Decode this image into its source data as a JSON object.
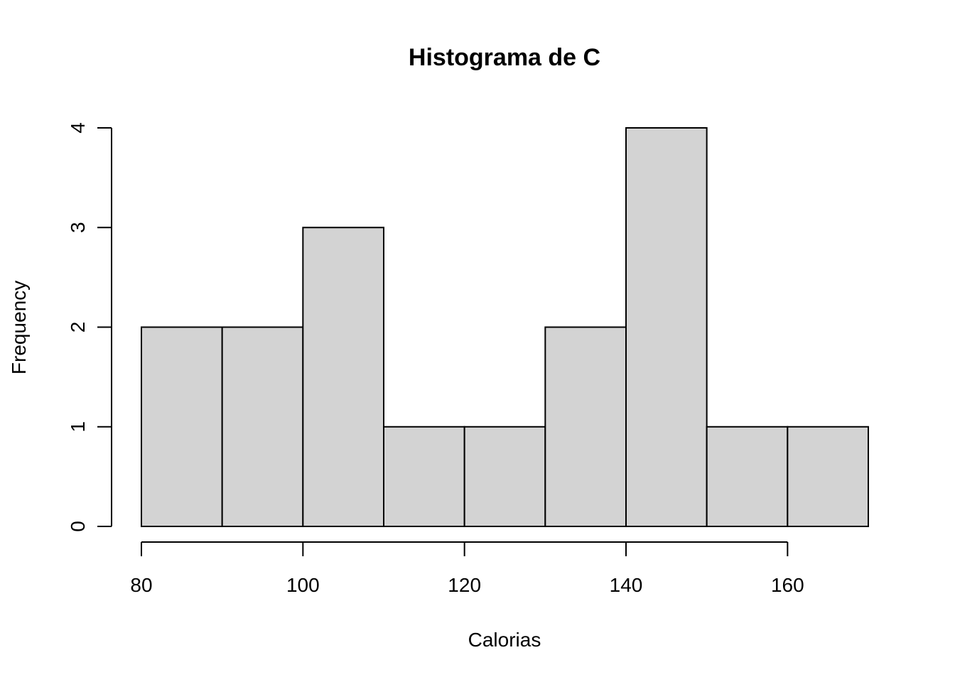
{
  "chart_data": {
    "type": "bar",
    "title": "Histograma de C",
    "xlabel": "Calorias",
    "ylabel": "Frequency",
    "bins": [
      {
        "start": 80,
        "end": 90,
        "count": 2
      },
      {
        "start": 90,
        "end": 100,
        "count": 2
      },
      {
        "start": 100,
        "end": 110,
        "count": 3
      },
      {
        "start": 110,
        "end": 120,
        "count": 1
      },
      {
        "start": 120,
        "end": 130,
        "count": 1
      },
      {
        "start": 130,
        "end": 140,
        "count": 2
      },
      {
        "start": 140,
        "end": 150,
        "count": 4
      },
      {
        "start": 150,
        "end": 160,
        "count": 1
      },
      {
        "start": 160,
        "end": 170,
        "count": 1
      }
    ],
    "xlim": [
      80,
      170
    ],
    "ylim": [
      0,
      4
    ],
    "x_ticks": [
      80,
      100,
      120,
      140,
      160
    ],
    "x_tick_labels": [
      "80",
      "100",
      "120",
      "140",
      "160"
    ],
    "y_ticks": [
      0,
      1,
      2,
      3,
      4
    ],
    "y_tick_labels": [
      "0",
      "1",
      "2",
      "3",
      "4"
    ],
    "bar_color": "#d3d3d3",
    "edge_color": "#000000",
    "grid": false
  }
}
